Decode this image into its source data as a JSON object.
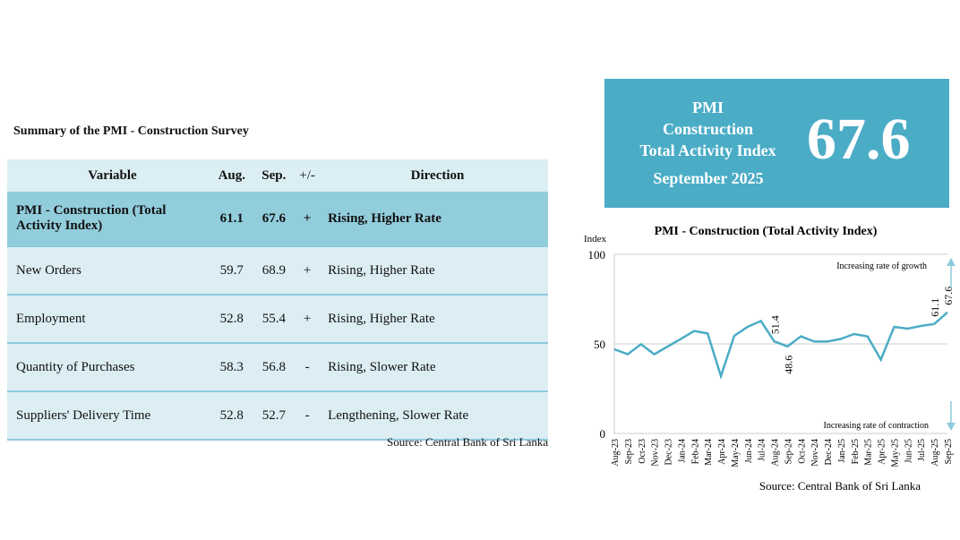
{
  "table": {
    "title": "Summary of the PMI - Construction Survey",
    "headers": [
      "Variable",
      "Aug.",
      "Sep.",
      "+/-",
      "Direction"
    ],
    "rows": [
      {
        "variable": "PMI - Construction (Total Activity Index)",
        "aug": "61.1",
        "sep": "67.6",
        "change": "+",
        "direction": "Rising, Higher Rate"
      },
      {
        "variable": "New Orders",
        "aug": "59.7",
        "sep": "68.9",
        "change": "+",
        "direction": "Rising, Higher Rate"
      },
      {
        "variable": "Employment",
        "aug": "52.8",
        "sep": "55.4",
        "change": "+",
        "direction": "Rising, Higher Rate"
      },
      {
        "variable": "Quantity of Purchases",
        "aug": "58.3",
        "sep": "56.8",
        "change": "-",
        "direction": "Rising, Slower Rate"
      },
      {
        "variable": "Suppliers' Delivery Time",
        "aug": "52.8",
        "sep": "52.7",
        "change": "-",
        "direction": "Lengthening, Slower Rate"
      }
    ],
    "source": "Source: Central Bank of Sri Lanka"
  },
  "banner": {
    "line1": "PMI",
    "line2": "Construction",
    "line3": "Total Activity Index",
    "month": "September 2025",
    "value": "67.6",
    "color": "#4bacc6"
  },
  "chart_data": {
    "type": "line",
    "title": "PMI - Construction (Total Activity Index)",
    "ylabel": "Index",
    "ylim": [
      0,
      100
    ],
    "yticks": [
      0,
      50,
      100
    ],
    "categories": [
      "Aug-23",
      "Sep-23",
      "Oct-23",
      "Nov-23",
      "Dec-23",
      "Jan-24",
      "Feb-24",
      "Mar-24",
      "Apr-24",
      "May-24",
      "Jun-24",
      "Jul-24",
      "Aug-24",
      "Sep-24",
      "Oct-24",
      "Nov-24",
      "Dec-24",
      "Jan-25",
      "Feb-25",
      "Mar-25",
      "Apr-25",
      "May-25",
      "Jun-25",
      "Jul-25",
      "Aug-25",
      "Sep-25"
    ],
    "values": [
      47.0,
      44.2,
      49.8,
      44.2,
      48.5,
      52.8,
      57.2,
      55.8,
      32.0,
      54.5,
      59.5,
      62.8,
      51.4,
      48.6,
      54.2,
      51.3,
      51.3,
      52.8,
      55.5,
      54.2,
      41.2,
      59.5,
      58.5,
      60.0,
      61.1,
      67.6
    ],
    "data_labels": [
      {
        "category": "Aug-24",
        "text": "51.4"
      },
      {
        "category": "Sep-24",
        "text": "48.6"
      },
      {
        "category": "Aug-25",
        "text": "61.1"
      },
      {
        "category": "Sep-25",
        "text": "67.6"
      }
    ],
    "annotations": [
      "Increasing rate of growth",
      "Increasing rate of contraction"
    ],
    "grid": true,
    "color": "#4bacc6",
    "source": "Source: Central Bank of Sri Lanka"
  }
}
